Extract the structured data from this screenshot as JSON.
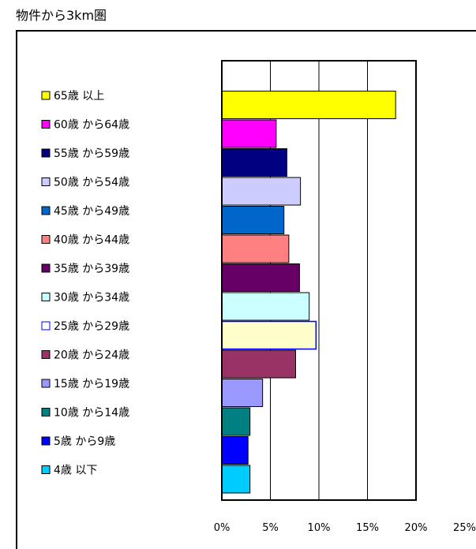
{
  "chart_data": {
    "type": "bar",
    "orientation": "horizontal",
    "title": "物件から3km圏",
    "categories": [
      "65歳 以上",
      "60歳 から64歳",
      "55歳 から59歳",
      "50歳 から54歳",
      "45歳 から49歳",
      "40歳 から44歳",
      "35歳 から39歳",
      "30歳 から34歳",
      "25歳 から29歳",
      "20歳 から24歳",
      "15歳 から19歳",
      "10歳 から14歳",
      "5歳 から9歳",
      "4歳 以下"
    ],
    "values": [
      17.9,
      5.6,
      6.7,
      8.1,
      6.4,
      6.9,
      8.0,
      9.0,
      9.7,
      7.6,
      4.2,
      2.9,
      2.7,
      2.9
    ],
    "colors": [
      "#FFFF00",
      "#FF00FF",
      "#000080",
      "#CCCCFF",
      "#0066CC",
      "#FF8080",
      "#660066",
      "#CCFFFF",
      "#FFFFCC",
      "#993366",
      "#9999FF",
      "#008080",
      "#0000FF",
      "#00CCFF"
    ],
    "legend_marker_style": [
      "filled",
      "filled",
      "filled",
      "filled",
      "filled",
      "filled",
      "filled",
      "filled",
      "outline-blue",
      "filled",
      "filled",
      "filled",
      "filled",
      "filled"
    ],
    "xlabel": "",
    "ylabel": "",
    "xlim": [
      0,
      25
    ],
    "x_ticks": [
      "0%",
      "5%",
      "10%",
      "15%",
      "20%",
      "25%"
    ],
    "grid": true,
    "legend_position": "left"
  }
}
